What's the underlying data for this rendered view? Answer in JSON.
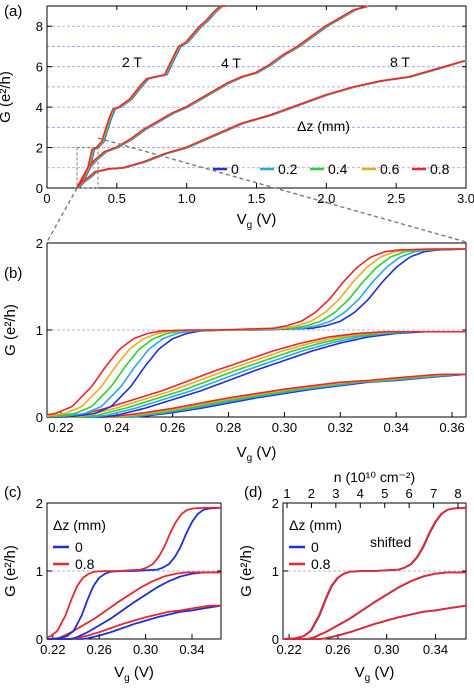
{
  "colors": {
    "dz_0": "#1f2fd6",
    "dz_0_2": "#2aa8e6",
    "dz_0_4": "#2fcf2f",
    "dz_0_6": "#f2a81e",
    "dz_0_8": "#e8282c",
    "grid": "#9a9ae8",
    "zoom_guide": "#7a7a7a"
  },
  "chart_data": [
    {
      "panel": "(a)",
      "type": "line",
      "xlabel_main": "V",
      "xlabel_sub": "g",
      "xlabel_unit": " (V)",
      "ylabel": "G (e²/h)",
      "xlim": [
        0,
        3.0
      ],
      "ylim": [
        0,
        9
      ],
      "xticks": [
        0,
        0.5,
        1.0,
        1.5,
        2.0,
        2.5,
        3.0
      ],
      "xtick_labels": [
        "0",
        "0.5",
        "1.0",
        "1.5",
        "2.0",
        "2.5",
        "3.0"
      ],
      "yticks": [
        0,
        2,
        4,
        6,
        8
      ],
      "ytick_labels": [
        "0",
        "2",
        "4",
        "6",
        "8"
      ],
      "grid": "horizontal dashed at every 1 e²/h",
      "annotations": [
        "2 T",
        "4 T",
        "8 T"
      ],
      "legend_title": "Δz (mm)",
      "legend_position": "bottom-right",
      "legend_entries": [
        "0",
        "0.2",
        "0.4",
        "0.6",
        "0.8"
      ],
      "series": [
        {
          "field": "2 T",
          "x": [
            0.22,
            0.26,
            0.3,
            0.33,
            0.36,
            0.4,
            0.45,
            0.48,
            0.52,
            0.6,
            0.68,
            0.72,
            0.78,
            0.85,
            0.92,
            0.95,
            1.0,
            1.05,
            1.1,
            1.15,
            1.2,
            1.25,
            1.3
          ],
          "y": [
            0,
            0.5,
            1.0,
            1.9,
            2.0,
            2.3,
            3.4,
            3.9,
            4.0,
            4.4,
            5.1,
            5.4,
            5.5,
            5.6,
            6.6,
            7.0,
            7.2,
            7.6,
            8.0,
            8.3,
            8.7,
            9.0,
            9.1
          ]
        },
        {
          "field": "4 T",
          "x": [
            0.22,
            0.26,
            0.3,
            0.35,
            0.42,
            0.5,
            0.6,
            0.7,
            0.8,
            0.9,
            1.0,
            1.1,
            1.2,
            1.3,
            1.4,
            1.5,
            1.6,
            1.7,
            1.8,
            1.9,
            2.0,
            2.1,
            2.2,
            2.3
          ],
          "y": [
            0,
            0.4,
            1.0,
            1.4,
            1.8,
            2.0,
            2.4,
            2.9,
            3.3,
            3.7,
            4.0,
            4.4,
            4.8,
            5.2,
            5.5,
            5.7,
            6.1,
            6.6,
            7.0,
            7.5,
            8.0,
            8.4,
            8.8,
            9.1
          ]
        },
        {
          "field": "8 T",
          "x": [
            0.22,
            0.26,
            0.3,
            0.35,
            0.45,
            0.55,
            0.7,
            0.85,
            1.0,
            1.2,
            1.4,
            1.6,
            1.8,
            2.0,
            2.2,
            2.4,
            2.6,
            2.8,
            3.0
          ],
          "y": [
            0,
            0.3,
            0.5,
            0.8,
            0.95,
            1.0,
            1.3,
            1.7,
            2.0,
            2.6,
            3.2,
            3.6,
            4.1,
            4.6,
            5.0,
            5.3,
            5.5,
            5.9,
            6.3
          ]
        }
      ]
    },
    {
      "panel": "(b)",
      "type": "line",
      "xlabel_main": "V",
      "xlabel_sub": "g",
      "xlabel_unit": " (V)",
      "ylabel": "G (e²/h)",
      "xlim": [
        0.215,
        0.365
      ],
      "ylim": [
        0,
        2
      ],
      "xticks": [
        0.22,
        0.24,
        0.26,
        0.28,
        0.3,
        0.32,
        0.34,
        0.36
      ],
      "xtick_labels": [
        "0.22",
        "0.24",
        "0.26",
        "0.28",
        "0.30",
        "0.32",
        "0.34",
        "0.36"
      ],
      "yticks": [
        0,
        1,
        2
      ],
      "ytick_labels": [
        "0",
        "1",
        "2"
      ],
      "grid": "horizontal dashed at 1 and 2 e²/h",
      "series_note": "three curve groups (2 T, 4 T, 8 T), each drawn for Δz = 0, 0.2, 0.4, 0.6, 0.8 mm",
      "curves": {
        "2 T": {
          "x": [
            0.215,
            0.225,
            0.232,
            0.238,
            0.245,
            0.25,
            0.255,
            0.26,
            0.265,
            0.27,
            0.28,
            0.29,
            0.3,
            0.31,
            0.315,
            0.32,
            0.325,
            0.33,
            0.335,
            0.34,
            0.345,
            0.35,
            0.355,
            0.365
          ],
          "y": [
            0,
            0.01,
            0.04,
            0.12,
            0.35,
            0.58,
            0.78,
            0.9,
            0.96,
            0.99,
            1.0,
            1.0,
            1.01,
            1.02,
            1.05,
            1.1,
            1.2,
            1.35,
            1.55,
            1.72,
            1.84,
            1.9,
            1.92,
            1.93
          ],
          "shift_per_step": 0.0035
        },
        "4 T": {
          "x": [
            0.215,
            0.235,
            0.24,
            0.245,
            0.25,
            0.26,
            0.27,
            0.28,
            0.29,
            0.3,
            0.31,
            0.32,
            0.33,
            0.34,
            0.35,
            0.365
          ],
          "y": [
            0,
            0,
            0.02,
            0.06,
            0.1,
            0.2,
            0.3,
            0.42,
            0.54,
            0.65,
            0.76,
            0.85,
            0.92,
            0.96,
            0.98,
            0.98
          ],
          "shift_per_step": 0.0035
        },
        "8 T": {
          "x": [
            0.215,
            0.245,
            0.25,
            0.26,
            0.27,
            0.28,
            0.29,
            0.3,
            0.31,
            0.32,
            0.33,
            0.34,
            0.35,
            0.365
          ],
          "y": [
            0,
            0,
            0.01,
            0.05,
            0.1,
            0.16,
            0.22,
            0.27,
            0.32,
            0.36,
            0.4,
            0.42,
            0.45,
            0.49
          ],
          "shift_per_step": 0.0025
        }
      }
    },
    {
      "panel": "(c)",
      "type": "line",
      "xlabel_main": "V",
      "xlabel_sub": "g",
      "xlabel_unit": " (V)",
      "ylabel": "G (e²/h)",
      "xlim": [
        0.215,
        0.365
      ],
      "ylim": [
        0,
        2
      ],
      "xticks": [
        0.22,
        0.26,
        0.3,
        0.34
      ],
      "xtick_labels": [
        "0.22",
        "0.26",
        "0.30",
        "0.34"
      ],
      "yticks": [
        0,
        1,
        2
      ],
      "ytick_labels": [
        "0",
        "1",
        "2"
      ],
      "legend_title": "Δz (mm)",
      "legend_entries": [
        "0",
        "0.8"
      ],
      "legend_position": "top-left",
      "series_note": "Δz = 0 (blue) and Δz = 0.8 mm (red) only; red shifted to lower Vg"
    },
    {
      "panel": "(d)",
      "type": "line",
      "xlabel_main": "V",
      "xlabel_sub": "g",
      "xlabel_unit": " (V)",
      "ylabel": "",
      "top_axis_label": "n (10¹⁰ cm⁻²)",
      "top_ticks": [
        "1",
        "2",
        "3",
        "4",
        "5",
        "6",
        "7",
        "8"
      ],
      "xlim": [
        0.215,
        0.365
      ],
      "ylim": [
        0,
        2
      ],
      "xticks": [
        0.22,
        0.26,
        0.3,
        0.34
      ],
      "xtick_labels": [
        "0.22",
        "0.26",
        "0.30",
        "0.34"
      ],
      "yticks": [
        0,
        1,
        2
      ],
      "ytick_labels": [
        "0",
        "1",
        "2"
      ],
      "legend_title": "Δz (mm)",
      "legend_entries": [
        "0",
        "0.8"
      ],
      "annotation": "shifted",
      "series_note": "Δz = 0 and 0.8 mm curves overlap after shifting"
    }
  ]
}
